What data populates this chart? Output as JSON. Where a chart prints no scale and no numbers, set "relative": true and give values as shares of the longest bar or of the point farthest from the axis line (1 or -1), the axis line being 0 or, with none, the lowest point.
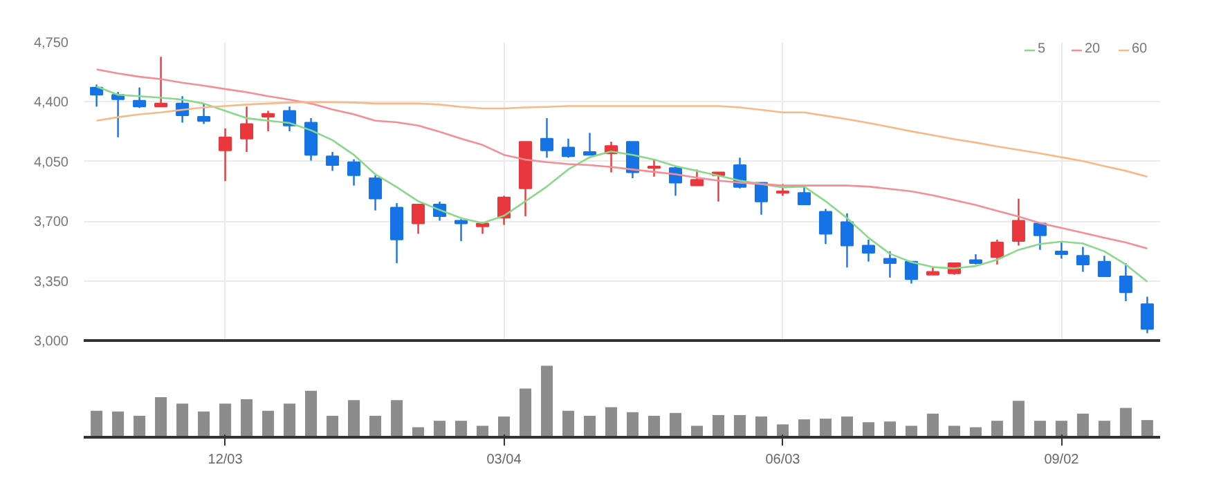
{
  "chart_data": [
    {
      "type": "candlestick",
      "ohlc": [
        [
          4484,
          4501,
          4372,
          4441
        ],
        [
          4441,
          4458,
          4192,
          4415
        ],
        [
          4407,
          4484,
          4364,
          4372
        ],
        [
          4372,
          4664,
          4370,
          4390
        ],
        [
          4390,
          4433,
          4278,
          4321
        ],
        [
          4312,
          4390,
          4270,
          4287
        ],
        [
          4115,
          4244,
          3935,
          4192
        ],
        [
          4184,
          4372,
          4106,
          4270
        ],
        [
          4312,
          4347,
          4227,
          4330
        ],
        [
          4347,
          4372,
          4227,
          4261
        ],
        [
          4278,
          4304,
          4055,
          4089
        ],
        [
          4081,
          4106,
          3995,
          4029
        ],
        [
          4046,
          4063,
          3909,
          3969
        ],
        [
          3952,
          3969,
          3763,
          3832
        ],
        [
          3780,
          3806,
          3454,
          3592
        ],
        [
          3687,
          3798,
          3626,
          3798
        ],
        [
          3798,
          3815,
          3703,
          3729
        ],
        [
          3703,
          3712,
          3583,
          3687
        ],
        [
          3669,
          3695,
          3626,
          3687
        ],
        [
          3720,
          3849,
          3678,
          3840
        ],
        [
          3892,
          4166,
          3729,
          4166
        ],
        [
          4184,
          4304,
          4072,
          4115
        ],
        [
          4132,
          4184,
          4072,
          4081
        ],
        [
          4106,
          4218,
          4089,
          4089
        ],
        [
          4098,
          4166,
          3986,
          4141
        ],
        [
          4166,
          4166,
          3952,
          3986
        ],
        [
          4012,
          4063,
          3961,
          4021
        ],
        [
          4012,
          4021,
          3849,
          3926
        ],
        [
          3909,
          4003,
          3909,
          3943
        ],
        [
          3969,
          3986,
          3815,
          3986
        ],
        [
          4029,
          4072,
          3892,
          3900
        ],
        [
          3926,
          3926,
          3738,
          3815
        ],
        [
          3866,
          3918,
          3849,
          3875
        ],
        [
          3866,
          3901,
          3798,
          3798
        ],
        [
          3755,
          3772,
          3566,
          3626
        ],
        [
          3695,
          3746,
          3429,
          3557
        ],
        [
          3557,
          3592,
          3463,
          3514
        ],
        [
          3480,
          3523,
          3369,
          3454
        ],
        [
          3463,
          3463,
          3334,
          3360
        ],
        [
          3386,
          3429,
          3386,
          3403
        ],
        [
          3394,
          3454,
          3386,
          3454
        ],
        [
          3472,
          3506,
          3446,
          3454
        ],
        [
          3489,
          3592,
          3446,
          3575
        ],
        [
          3583,
          3832,
          3557,
          3703
        ],
        [
          3687,
          3687,
          3532,
          3617
        ],
        [
          3523,
          3575,
          3480,
          3506
        ],
        [
          3497,
          3549,
          3403,
          3446
        ],
        [
          3463,
          3497,
          3377,
          3377
        ],
        [
          3377,
          3454,
          3231,
          3283
        ],
        [
          3214,
          3257,
          3043,
          3068
        ]
      ],
      "colors": [
        "#1673e6",
        "#1673e6",
        "#1673e6",
        "#e8383d",
        "#1673e6",
        "#1673e6",
        "#e8383d",
        "#e8383d",
        "#e8383d",
        "#1673e6",
        "#1673e6",
        "#1673e6",
        "#1673e6",
        "#1673e6",
        "#1673e6",
        "#e8383d",
        "#1673e6",
        "#1673e6",
        "#e8383d",
        "#e8383d",
        "#e8383d",
        "#1673e6",
        "#1673e6",
        "#1673e6",
        "#e8383d",
        "#1673e6",
        "#e8383d",
        "#1673e6",
        "#e8383d",
        "#e8383d",
        "#1673e6",
        "#1673e6",
        "#e8383d",
        "#1673e6",
        "#1673e6",
        "#1673e6",
        "#1673e6",
        "#1673e6",
        "#1673e6",
        "#e8383d",
        "#e8383d",
        "#1673e6",
        "#e8383d",
        "#e8383d",
        "#1673e6",
        "#1673e6",
        "#1673e6",
        "#1673e6",
        "#1673e6",
        "#1673e6"
      ],
      "series": [
        {
          "name": "5",
          "type": "line",
          "color": "#8ad88a",
          "values": [
            4490,
            4441,
            4433,
            4424,
            4413,
            4390,
            4347,
            4304,
            4289,
            4276,
            4233,
            4175,
            4089,
            3975,
            3900,
            3817,
            3766,
            3718,
            3689,
            3732,
            3817,
            3903,
            4004,
            4075,
            4109,
            4089,
            4061,
            4023,
            3995,
            3967,
            3938,
            3918,
            3898,
            3903,
            3817,
            3718,
            3603,
            3509,
            3460,
            3431,
            3423,
            3437,
            3474,
            3532,
            3566,
            3580,
            3569,
            3523,
            3446,
            3345
          ]
        },
        {
          "name": "20",
          "type": "line",
          "color": "#f28f96",
          "values": [
            4590,
            4567,
            4547,
            4533,
            4512,
            4495,
            4475,
            4456,
            4433,
            4413,
            4390,
            4355,
            4327,
            4289,
            4280,
            4261,
            4224,
            4184,
            4147,
            4089,
            4061,
            4046,
            4035,
            4029,
            4018,
            4003,
            3989,
            3975,
            3955,
            3938,
            3926,
            3918,
            3909,
            3909,
            3909,
            3909,
            3903,
            3889,
            3875,
            3852,
            3823,
            3795,
            3761,
            3727,
            3689,
            3660,
            3632,
            3603,
            3575,
            3540
          ]
        },
        {
          "name": "60",
          "type": "line",
          "color": "#f7b986",
          "values": [
            4289,
            4310,
            4327,
            4338,
            4353,
            4367,
            4375,
            4384,
            4390,
            4396,
            4398,
            4398,
            4396,
            4390,
            4390,
            4390,
            4384,
            4370,
            4361,
            4361,
            4367,
            4370,
            4375,
            4375,
            4375,
            4375,
            4375,
            4375,
            4375,
            4375,
            4367,
            4353,
            4338,
            4338,
            4318,
            4298,
            4276,
            4252,
            4227,
            4204,
            4181,
            4161,
            4138,
            4118,
            4098,
            4075,
            4052,
            4023,
            3995,
            3961
          ]
        }
      ],
      "ylim": [
        3000,
        4750
      ],
      "yticks": [
        {
          "value": 3000,
          "label": "3,000"
        },
        {
          "value": 3350,
          "label": "3,350"
        },
        {
          "value": 3700,
          "label": "3,700"
        },
        {
          "value": 4050,
          "label": "4,050"
        },
        {
          "value": 4400,
          "label": "4,400"
        },
        {
          "value": 4750,
          "label": "4,750"
        }
      ],
      "grid": true,
      "legend": "top right",
      "tick_labels": "y"
    },
    {
      "type": "bar",
      "relative": true,
      "color": "#8c8c8c",
      "categories": [
        null,
        null,
        null,
        null,
        null,
        null,
        "12/03",
        null,
        null,
        null,
        null,
        null,
        null,
        null,
        null,
        null,
        null,
        null,
        null,
        "03/04",
        null,
        null,
        null,
        null,
        null,
        null,
        null,
        null,
        null,
        null,
        null,
        null,
        "06/03",
        null,
        null,
        null,
        null,
        null,
        null,
        null,
        null,
        null,
        null,
        null,
        null,
        "09/02",
        null,
        null,
        null,
        null
      ],
      "values": [
        0.37,
        0.36,
        0.3,
        0.56,
        0.47,
        0.36,
        0.47,
        0.53,
        0.37,
        0.47,
        0.65,
        0.3,
        0.52,
        0.3,
        0.52,
        0.14,
        0.23,
        0.23,
        0.16,
        0.29,
        0.68,
        1,
        0.37,
        0.3,
        0.42,
        0.35,
        0.3,
        0.34,
        0.16,
        0.31,
        0.31,
        0.29,
        0.18,
        0.25,
        0.26,
        0.29,
        0.21,
        0.22,
        0.16,
        0.33,
        0.16,
        0.14,
        0.23,
        0.51,
        0.23,
        0.23,
        0.33,
        0.23,
        0.41,
        0.24
      ]
    }
  ]
}
